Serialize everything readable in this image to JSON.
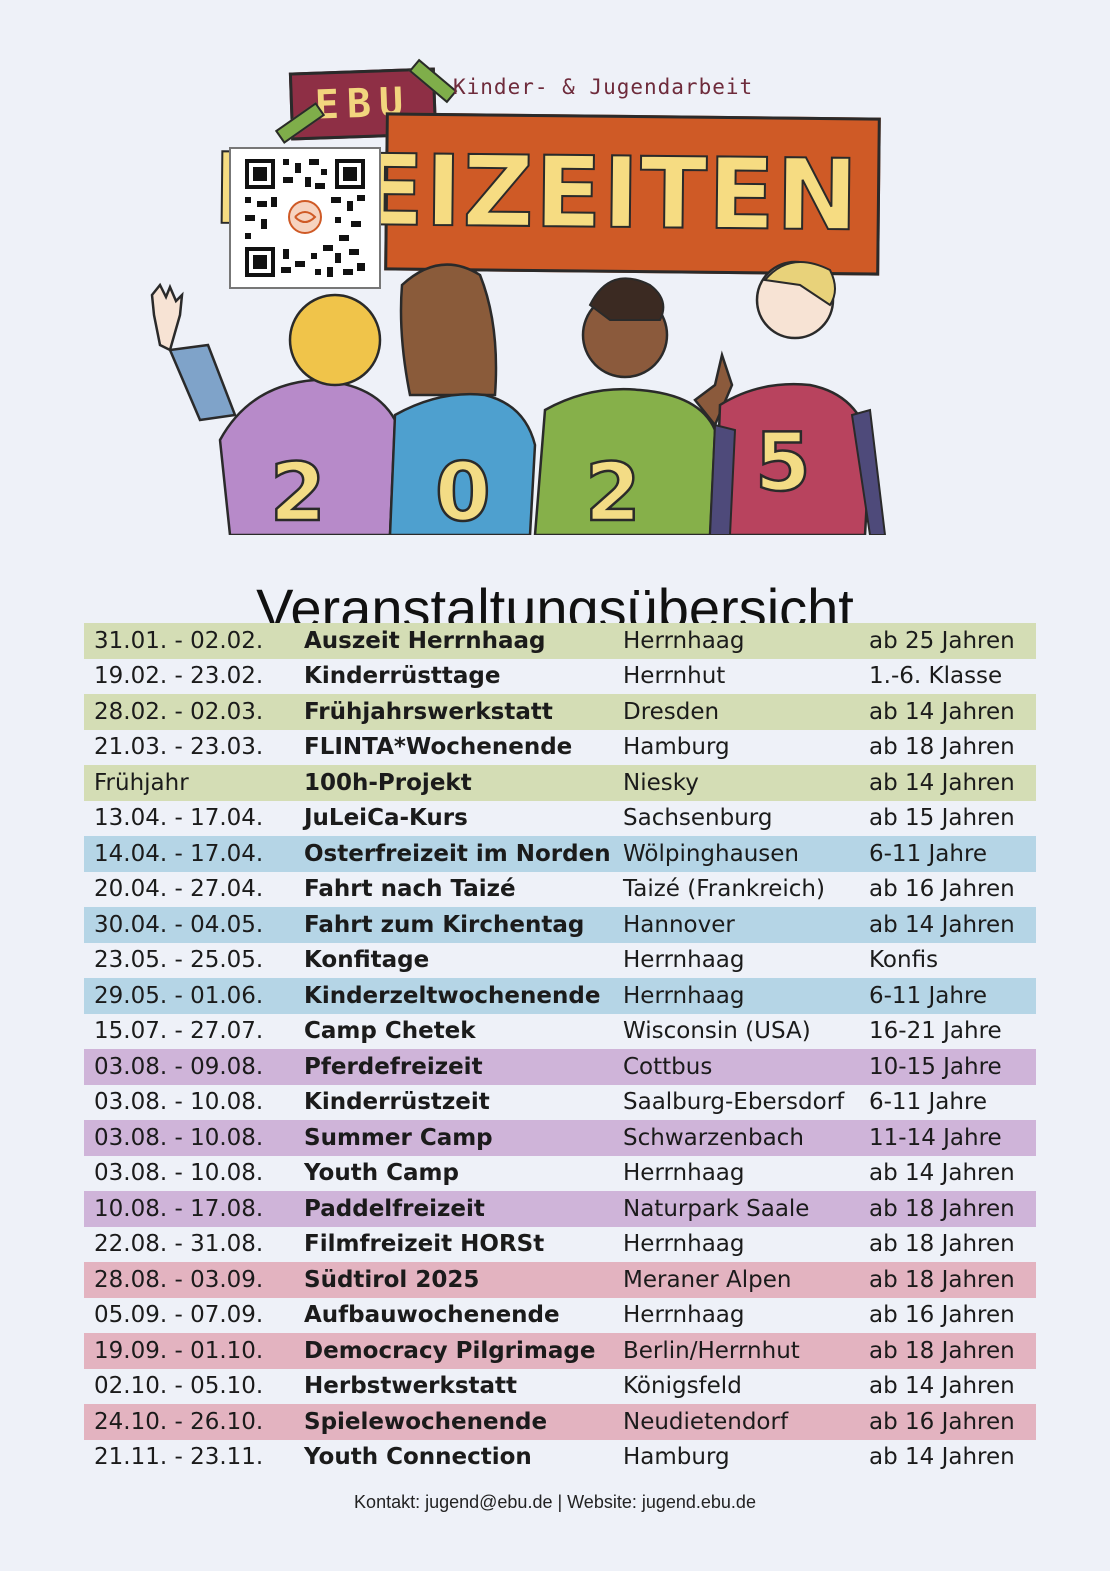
{
  "header": {
    "badge_text": "EBU",
    "subtitle": "Kinder- & Jugendarbeit",
    "banner_text": "FREIZEITEN",
    "year_digits": [
      "2",
      "0",
      "2",
      "5"
    ]
  },
  "title": "Veranstaltungsübersicht",
  "colors": {
    "background": "#eef1f8",
    "green": "#d4ddb5",
    "blue": "#b5d5e6",
    "purple": "#cfb4d9",
    "pink": "#e3b3c0",
    "banner": "#cf5a26",
    "badge": "#8e2f45",
    "digit": "#f3dc85"
  },
  "events": [
    {
      "date": "31.01. - 02.02.",
      "name": "Auszeit Herrnhaag",
      "place": "Herrnhaag",
      "age": "ab 25 Jahren",
      "color": "green"
    },
    {
      "date": "19.02. - 23.02.",
      "name": "Kinderrüsttage",
      "place": "Herrnhut",
      "age": "1.-6. Klasse",
      "color": "plain"
    },
    {
      "date": "28.02. - 02.03.",
      "name": "Frühjahrswerkstatt",
      "place": "Dresden",
      "age": "ab 14 Jahren",
      "color": "green"
    },
    {
      "date": "21.03. - 23.03.",
      "name": "FLINTA*Wochenende",
      "place": "Hamburg",
      "age": "ab 18 Jahren",
      "color": "plain"
    },
    {
      "date": "Frühjahr",
      "name": "100h-Projekt",
      "place": "Niesky",
      "age": "ab 14 Jahren",
      "color": "green"
    },
    {
      "date": "13.04. - 17.04.",
      "name": "JuLeiCa-Kurs",
      "place": "Sachsenburg",
      "age": "ab 15 Jahren",
      "color": "plain"
    },
    {
      "date": "14.04. - 17.04.",
      "name": "Osterfreizeit im Norden",
      "place": "Wölpinghausen",
      "age": "6-11 Jahre",
      "color": "blue"
    },
    {
      "date": "20.04. - 27.04.",
      "name": "Fahrt nach Taizé",
      "place": "Taizé (Frankreich)",
      "age": "ab 16 Jahren",
      "color": "plain"
    },
    {
      "date": "30.04. - 04.05.",
      "name": "Fahrt zum Kirchentag",
      "place": "Hannover",
      "age": "ab 14 Jahren",
      "color": "blue"
    },
    {
      "date": "23.05. - 25.05.",
      "name": "Konfitage",
      "place": "Herrnhaag",
      "age": "Konfis",
      "color": "plain"
    },
    {
      "date": "29.05. - 01.06.",
      "name": "Kinderzeltwochenende",
      "place": "Herrnhaag",
      "age": "6-11 Jahre",
      "color": "blue"
    },
    {
      "date": "15.07. - 27.07.",
      "name": "Camp Chetek",
      "place": "Wisconsin (USA)",
      "age": "16-21 Jahre",
      "color": "plain"
    },
    {
      "date": "03.08. - 09.08.",
      "name": "Pferdefreizeit",
      "place": "Cottbus",
      "age": "10-15 Jahre",
      "color": "purple"
    },
    {
      "date": "03.08. - 10.08.",
      "name": "Kinderrüstzeit",
      "place": "Saalburg-Ebersdorf",
      "age": "6-11 Jahre",
      "color": "plain"
    },
    {
      "date": "03.08. - 10.08.",
      "name": "Summer Camp",
      "place": "Schwarzenbach",
      "age": "11-14 Jahre",
      "color": "purple"
    },
    {
      "date": "03.08. - 10.08.",
      "name": "Youth Camp",
      "place": "Herrnhaag",
      "age": "ab 14 Jahren",
      "color": "plain"
    },
    {
      "date": "10.08. - 17.08.",
      "name": "Paddelfreizeit",
      "place": "Naturpark Saale",
      "age": "ab 18 Jahren",
      "color": "purple"
    },
    {
      "date": "22.08. - 31.08.",
      "name": "Filmfreizeit HORSt",
      "place": "Herrnhaag",
      "age": "ab 18 Jahren",
      "color": "plain"
    },
    {
      "date": "28.08. - 03.09.",
      "name": "Südtirol 2025",
      "place": "Meraner Alpen",
      "age": "ab 18 Jahren",
      "color": "pink"
    },
    {
      "date": "05.09. - 07.09.",
      "name": "Aufbauwochenende",
      "place": "Herrnhaag",
      "age": "ab 16 Jahren",
      "color": "plain"
    },
    {
      "date": "19.09. - 01.10.",
      "name": "Democracy Pilgrimage",
      "place": "Berlin/Herrnhut",
      "age": "ab 18 Jahren",
      "color": "pink"
    },
    {
      "date": "02.10. - 05.10.",
      "name": "Herbstwerkstatt",
      "place": "Königsfeld",
      "age": "ab 14 Jahren",
      "color": "plain"
    },
    {
      "date": "24.10. - 26.10.",
      "name": "Spielewochenende",
      "place": "Neudietendorf",
      "age": "ab 16 Jahren",
      "color": "pink"
    },
    {
      "date": "21.11. - 23.11.",
      "name": "Youth Connection",
      "place": "Hamburg",
      "age": "ab 14 Jahren",
      "color": "plain"
    }
  ],
  "footer": {
    "text": "Kontakt: jugend@ebu.de | Website: jugend.ebu.de"
  }
}
